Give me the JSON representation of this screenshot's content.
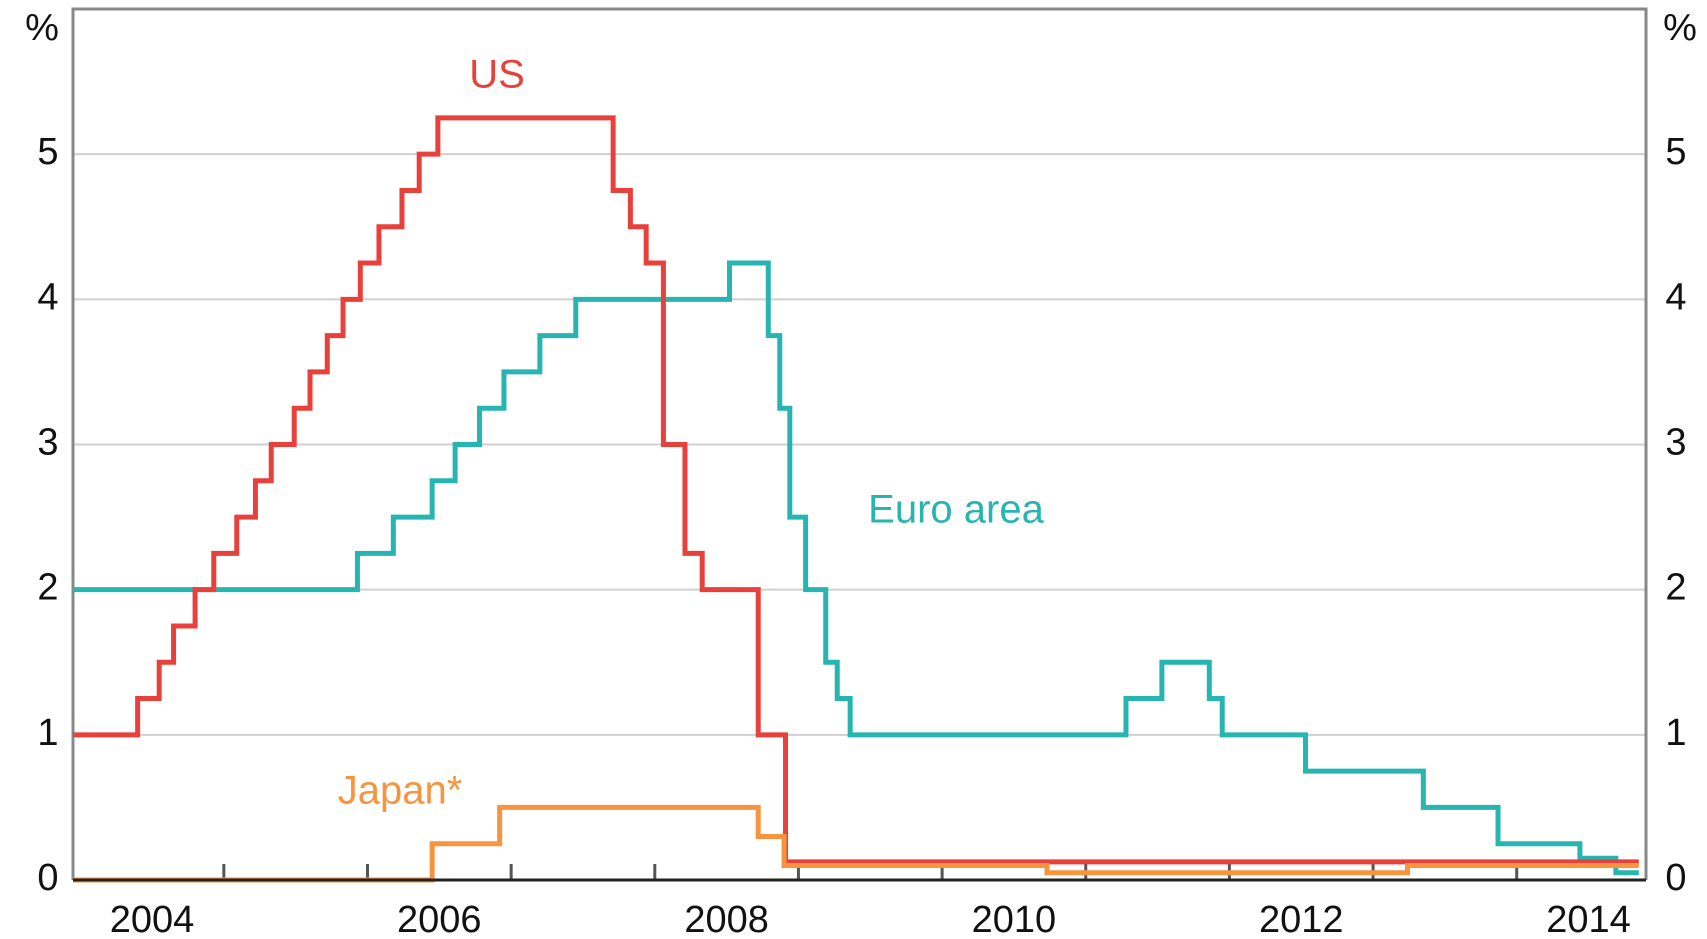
{
  "chart_data": {
    "type": "step",
    "y_unit": "%",
    "y2_unit": "%",
    "xlim": [
      2003.95,
      2014.9
    ],
    "xtick_marks": [
      2005,
      2006,
      2007,
      2008,
      2009,
      2010,
      2011,
      2012,
      2013,
      2014
    ],
    "xticks": [
      {
        "value": 2004.5,
        "label": "2004"
      },
      {
        "value": 2006.5,
        "label": "2006"
      },
      {
        "value": 2008.5,
        "label": "2008"
      },
      {
        "value": 2010.5,
        "label": "2010"
      },
      {
        "value": 2012.5,
        "label": "2012"
      },
      {
        "value": 2014.5,
        "label": "2014"
      }
    ],
    "ylim": [
      0,
      6
    ],
    "yticks": [
      0,
      1,
      2,
      3,
      4,
      5
    ],
    "y2lim": [
      0,
      6
    ],
    "y2ticks": [
      0,
      1,
      2,
      3,
      4,
      5
    ],
    "grid": true,
    "series": [
      {
        "name": "Euro area",
        "color": "#26b5b0",
        "x": [
          2003.95,
          2005.93,
          2006.18,
          2006.45,
          2006.61,
          2006.78,
          2006.95,
          2007.2,
          2007.45,
          2008.52,
          2008.79,
          2008.87,
          2008.94,
          2009.05,
          2009.19,
          2009.27,
          2009.36,
          2011.28,
          2011.53,
          2011.86,
          2011.95,
          2012.53,
          2013.35,
          2013.87,
          2014.44,
          2014.69,
          2014.85
        ],
        "values": [
          2,
          2.25,
          2.5,
          2.75,
          3,
          3.25,
          3.5,
          3.75,
          4,
          4.25,
          3.75,
          3.25,
          2.5,
          2,
          1.5,
          1.25,
          1,
          1.25,
          1.5,
          1.25,
          1,
          0.75,
          0.5,
          0.25,
          0.15,
          0.05,
          0.05
        ]
      },
      {
        "name": "US",
        "color": "#e8413c",
        "x": [
          2003.95,
          2004.4,
          2004.55,
          2004.65,
          2004.8,
          2004.93,
          2005.09,
          2005.22,
          2005.33,
          2005.49,
          2005.6,
          2005.72,
          2005.83,
          2005.95,
          2006.08,
          2006.24,
          2006.36,
          2006.49,
          2007.71,
          2007.83,
          2007.94,
          2008.06,
          2008.21,
          2008.33,
          2008.72,
          2008.91,
          2014.85
        ],
        "values": [
          1,
          1.25,
          1.5,
          1.75,
          2,
          2.25,
          2.5,
          2.75,
          3,
          3.25,
          3.5,
          3.75,
          4,
          4.25,
          4.5,
          4.75,
          5,
          5.25,
          4.75,
          4.5,
          4.25,
          3,
          2.25,
          2,
          1,
          0.125,
          0.125
        ]
      },
      {
        "name": "Japan*",
        "color": "#f7943f",
        "x": [
          2003.95,
          2006.45,
          2006.92,
          2008.72,
          2008.9,
          2010.73,
          2013.24,
          2014.85
        ],
        "values": [
          0,
          0.25,
          0.5,
          0.3,
          0.1,
          0.05,
          0.1,
          0.1
        ]
      }
    ]
  }
}
